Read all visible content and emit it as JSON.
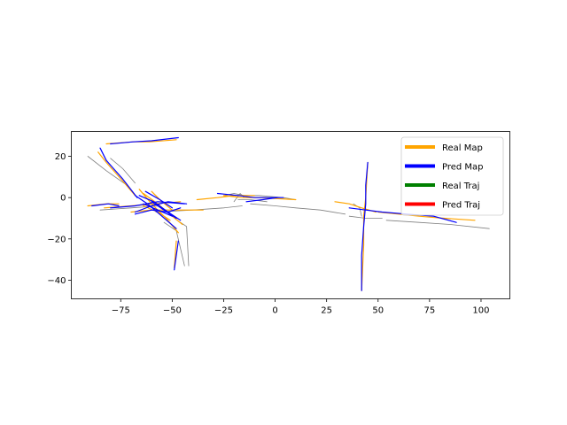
{
  "chart_data": {
    "type": "line",
    "title": "",
    "xlabel": "",
    "ylabel": "",
    "xlim": [
      -99,
      114
    ],
    "ylim": [
      -49,
      32
    ],
    "xticks": [
      -75,
      -50,
      -25,
      0,
      25,
      50,
      75,
      100
    ],
    "yticks": [
      -40,
      -20,
      0,
      20
    ],
    "xtick_labels": [
      "−75",
      "−50",
      "−25",
      "0",
      "25",
      "50",
      "75",
      "100"
    ],
    "ytick_labels": [
      "−40",
      "−20",
      "0",
      "20"
    ],
    "legend_position": "top-right",
    "legend": [
      {
        "label": "Real Map",
        "color": "#ffa500"
      },
      {
        "label": "Pred Map",
        "color": "#0000ff"
      },
      {
        "label": "Real Traj",
        "color": "#008000"
      },
      {
        "label": "Pred Traj",
        "color": "#ff0000"
      }
    ],
    "series": [
      {
        "name": "Real Map",
        "color": "#ffa500",
        "lines": [
          [
            [
              -82,
              26
            ],
            [
              -69,
              27
            ],
            [
              -61,
              27
            ],
            [
              -48,
              28
            ]
          ],
          [
            [
              -86,
              22
            ],
            [
              -82,
              17
            ],
            [
              -74,
              8
            ],
            [
              -68,
              1
            ]
          ],
          [
            [
              -91,
              -4
            ],
            [
              -82,
              -3
            ],
            [
              -76,
              -3
            ]
          ],
          [
            [
              -83,
              -5
            ],
            [
              -70,
              -4
            ],
            [
              -58,
              -3
            ],
            [
              -46,
              -2
            ]
          ],
          [
            [
              -70,
              -7
            ],
            [
              -60,
              -6
            ],
            [
              -50,
              -6
            ],
            [
              -35,
              -6
            ]
          ],
          [
            [
              -66,
              4
            ],
            [
              -60,
              -3
            ],
            [
              -53,
              -10
            ],
            [
              -47,
              -17
            ]
          ],
          [
            [
              -64,
              2
            ],
            [
              -57,
              -3
            ],
            [
              -50,
              -9
            ],
            [
              -45,
              -13
            ]
          ],
          [
            [
              -60,
              3
            ],
            [
              -55,
              -2
            ],
            [
              -50,
              -6
            ]
          ],
          [
            [
              -64,
              -4
            ],
            [
              -57,
              -7
            ],
            [
              -51,
              -11
            ]
          ],
          [
            [
              -48,
              -21
            ],
            [
              -49,
              -34
            ]
          ],
          [
            [
              -38,
              -1
            ],
            [
              -28,
              0
            ],
            [
              -20,
              1
            ],
            [
              -10,
              1
            ]
          ],
          [
            [
              -25,
              1
            ],
            [
              -16,
              0
            ],
            [
              -8,
              0
            ],
            [
              10,
              -1
            ]
          ],
          [
            [
              29,
              -2
            ],
            [
              36,
              -3
            ],
            [
              42,
              -5
            ],
            [
              49,
              -7
            ]
          ],
          [
            [
              42,
              -45
            ],
            [
              43,
              -23
            ],
            [
              43,
              -9
            ],
            [
              44,
              0
            ],
            [
              45,
              17
            ]
          ],
          [
            [
              50,
              -7
            ],
            [
              60,
              -8
            ],
            [
              70,
              -9
            ],
            [
              82,
              -10
            ],
            [
              97,
              -11
            ]
          ]
        ]
      },
      {
        "name": "Pred Map",
        "color": "#0000ff",
        "lines": [
          [
            [
              -80,
              26
            ],
            [
              -69,
              27
            ],
            [
              -60,
              27.5
            ],
            [
              -47,
              29
            ]
          ],
          [
            [
              -85,
              24
            ],
            [
              -82,
              18
            ],
            [
              -74,
              9
            ],
            [
              -67,
              0
            ]
          ],
          [
            [
              -89,
              -4
            ],
            [
              -81,
              -3
            ],
            [
              -76,
              -4
            ]
          ],
          [
            [
              -80,
              -5
            ],
            [
              -68,
              -4
            ],
            [
              -57,
              -2
            ],
            [
              -44,
              -3
            ]
          ],
          [
            [
              -68,
              -8
            ],
            [
              -60,
              -6
            ],
            [
              -52,
              -7
            ],
            [
              -46,
              -5
            ]
          ],
          [
            [
              -68,
              1
            ],
            [
              -62,
              -3
            ],
            [
              -55,
              -9
            ],
            [
              -48,
              -15
            ]
          ],
          [
            [
              -66,
              1
            ],
            [
              -59,
              -2
            ],
            [
              -52,
              -7
            ],
            [
              -46,
              -11
            ]
          ],
          [
            [
              -63,
              3
            ],
            [
              -56,
              -1
            ],
            [
              -50,
              -5
            ]
          ],
          [
            [
              -60,
              -2
            ],
            [
              -54,
              -6
            ],
            [
              -48,
              -10
            ]
          ],
          [
            [
              -64,
              -3
            ],
            [
              -57,
              -6
            ],
            [
              -50,
              -9
            ]
          ],
          [
            [
              -68,
              -7
            ],
            [
              -60,
              -4
            ],
            [
              -52,
              -2
            ],
            [
              -43,
              -3
            ]
          ],
          [
            [
              -47,
              -21
            ],
            [
              -49,
              -35
            ]
          ],
          [
            [
              -28,
              2
            ],
            [
              -18,
              1
            ],
            [
              -10,
              0
            ],
            [
              4,
              0
            ]
          ],
          [
            [
              -14,
              -2
            ],
            [
              -6,
              -1
            ],
            [
              1,
              0
            ]
          ],
          [
            [
              42,
              -45
            ],
            [
              42,
              -28
            ],
            [
              43,
              -14
            ],
            [
              44,
              -3
            ],
            [
              44,
              6
            ],
            [
              45,
              17
            ]
          ],
          [
            [
              36,
              -5
            ],
            [
              44,
              -6
            ],
            [
              52,
              -7
            ],
            [
              64,
              -8
            ],
            [
              77,
              -9
            ],
            [
              88,
              -12
            ]
          ]
        ]
      },
      {
        "name": "",
        "color": "#808080",
        "lines": [
          [
            [
              -91,
              20
            ],
            [
              -82,
              13
            ],
            [
              -72,
              6
            ]
          ],
          [
            [
              -80,
              19
            ],
            [
              -74,
              14
            ],
            [
              -68,
              7
            ]
          ],
          [
            [
              -85,
              -6
            ],
            [
              -70,
              -5
            ],
            [
              -56,
              -4
            ]
          ],
          [
            [
              -54,
              -12
            ],
            [
              -48,
              -16
            ],
            [
              -44,
              -33
            ]
          ],
          [
            [
              -46,
              -12
            ],
            [
              -43,
              -14
            ],
            [
              -42,
              -33
            ]
          ],
          [
            [
              -58,
              -7
            ],
            [
              -40,
              -6
            ],
            [
              -25,
              -5
            ],
            [
              -16,
              -4
            ]
          ],
          [
            [
              -12,
              -3
            ],
            [
              0,
              -4
            ],
            [
              10,
              -5
            ],
            [
              22,
              -6
            ],
            [
              34,
              -8
            ]
          ],
          [
            [
              -18,
              -1
            ],
            [
              -12,
              -1
            ],
            [
              -4,
              -2
            ]
          ],
          [
            [
              36,
              -9
            ],
            [
              44,
              -10
            ],
            [
              52,
              -10
            ]
          ],
          [
            [
              54,
              -11
            ],
            [
              70,
              -12
            ],
            [
              85,
              -13
            ],
            [
              104,
              -15
            ]
          ],
          [
            [
              38,
              -3
            ],
            [
              41,
              -5
            ],
            [
              42,
              -9
            ]
          ],
          [
            [
              -20,
              -2
            ],
            [
              -17,
              2
            ],
            [
              -15,
              0
            ]
          ],
          [
            [
              -25,
              1
            ],
            [
              -20,
              2
            ],
            [
              -15,
              1
            ],
            [
              -8,
              1
            ],
            [
              4,
              0
            ],
            [
              10,
              -1
            ]
          ]
        ]
      }
    ]
  }
}
